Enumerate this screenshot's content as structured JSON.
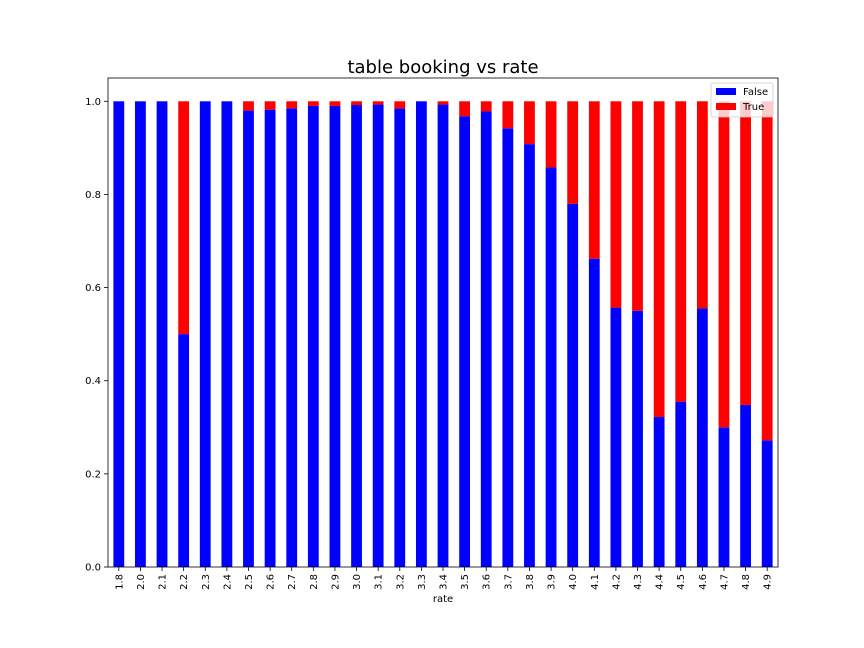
{
  "chart_data": {
    "type": "bar",
    "stacked": true,
    "title": "table booking vs rate",
    "xlabel": "rate",
    "ylabel": "",
    "ylim": [
      0,
      1.05
    ],
    "yticks": [
      "0.0",
      "0.2",
      "0.4",
      "0.6",
      "0.8",
      "1.0"
    ],
    "grid": false,
    "legend_position": "top-right",
    "categories": [
      "1.8",
      "2.0",
      "2.1",
      "2.2",
      "2.3",
      "2.4",
      "2.5",
      "2.6",
      "2.7",
      "2.8",
      "2.9",
      "3.0",
      "3.1",
      "3.2",
      "3.3",
      "3.4",
      "3.5",
      "3.6",
      "3.7",
      "3.8",
      "3.9",
      "4.0",
      "4.1",
      "4.2",
      "4.3",
      "4.4",
      "4.5",
      "4.6",
      "4.7",
      "4.8",
      "4.9"
    ],
    "series": [
      {
        "name": "False",
        "color": "#0000ff",
        "values": [
          1.0,
          1.0,
          1.0,
          0.5,
          1.0,
          1.0,
          0.98,
          0.982,
          0.985,
          0.99,
          0.99,
          0.992,
          0.993,
          0.985,
          1.0,
          0.993,
          0.968,
          0.978,
          0.942,
          0.908,
          0.858,
          0.78,
          0.662,
          0.557,
          0.55,
          0.322,
          0.355,
          0.555,
          0.3,
          0.348,
          0.272
        ]
      },
      {
        "name": "True",
        "color": "#ff0000",
        "values": [
          0.0,
          0.0,
          0.0,
          0.5,
          0.0,
          0.0,
          0.02,
          0.018,
          0.015,
          0.01,
          0.01,
          0.008,
          0.007,
          0.015,
          0.0,
          0.007,
          0.032,
          0.022,
          0.058,
          0.092,
          0.142,
          0.22,
          0.338,
          0.443,
          0.45,
          0.678,
          0.645,
          0.445,
          0.7,
          0.652,
          0.728
        ]
      }
    ]
  }
}
